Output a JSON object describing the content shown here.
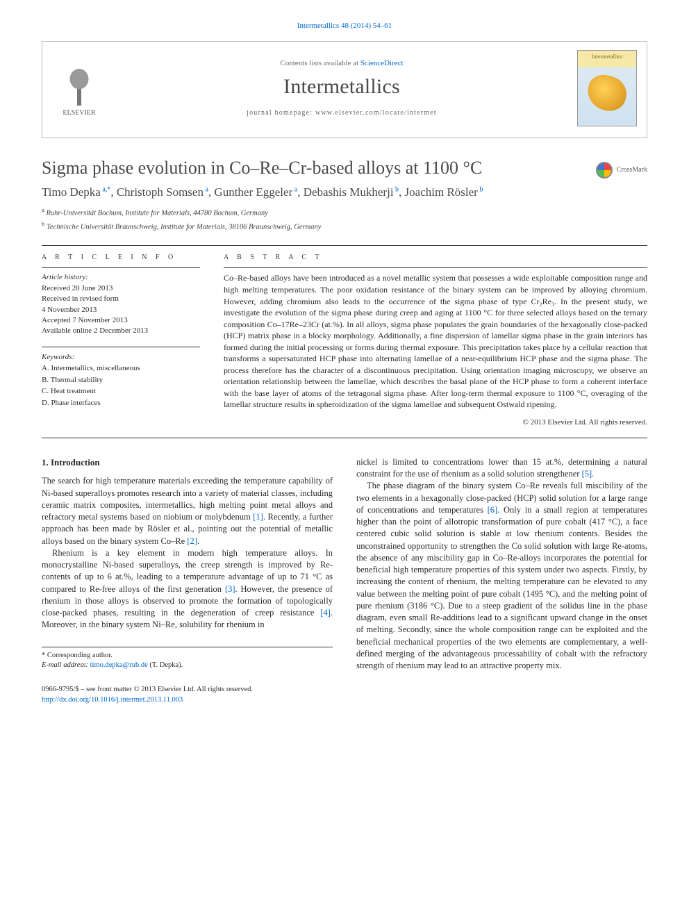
{
  "citation": {
    "text": "Intermetallics 48 (2014) 54–61"
  },
  "masthead": {
    "publisher": "ELSEVIER",
    "contents_prefix": "Contents lists available at ",
    "contents_link": "ScienceDirect",
    "journal": "Intermetallics",
    "homepage_prefix": "journal homepage: ",
    "homepage_url": "www.elsevier.com/locate/intermet",
    "cover_label": "Intermetallics"
  },
  "title": "Sigma phase evolution in Co–Re–Cr-based alloys at 1100 °C",
  "crossmark": "CrossMark",
  "authors_html": "Timo Depka",
  "authors": [
    {
      "name": "Timo Depka",
      "marks": "a,*"
    },
    {
      "name": "Christoph Somsen",
      "marks": "a"
    },
    {
      "name": "Gunther Eggeler",
      "marks": "a"
    },
    {
      "name": "Debashis Mukherji",
      "marks": "b"
    },
    {
      "name": "Joachim Rösler",
      "marks": "b"
    }
  ],
  "affiliations": [
    {
      "mark": "a",
      "text": "Ruhr-Universität Bochum, Institute for Materials, 44780 Bochum, Germany"
    },
    {
      "mark": "b",
      "text": "Technische Universität Braunschweig, Institute for Materials, 38106 Braunschweig, Germany"
    }
  ],
  "info": {
    "heading": "A R T I C L E   I N F O",
    "history_label": "Article history:",
    "history": [
      "Received 20 June 2013",
      "Received in revised form",
      "4 November 2013",
      "Accepted 7 November 2013",
      "Available online 2 December 2013"
    ],
    "keywords_label": "Keywords:",
    "keywords": [
      "A. Intermetallics, miscellaneous",
      "B. Thermal stability",
      "C. Heat treatment",
      "D. Phase interfaces"
    ]
  },
  "abstract": {
    "heading": "A B S T R A C T",
    "text": "Co–Re-based alloys have been introduced as a novel metallic system that possesses a wide exploitable composition range and high melting temperatures. The poor oxidation resistance of the binary system can be improved by alloying chromium. However, adding chromium also leads to the occurrence of the sigma phase of type Cr₂Re₃. In the present study, we investigate the evolution of the sigma phase during creep and aging at 1100 °C for three selected alloys based on the ternary composition Co–17Re–23Cr (at.%). In all alloys, sigma phase populates the grain boundaries of the hexagonally close-packed (HCP) matrix phase in a blocky morphology. Additionally, a fine dispersion of lamellar sigma phase in the grain interiors has formed during the initial processing or forms during thermal exposure. This precipitation takes place by a cellular reaction that transforms a supersaturated HCP phase into alternating lamellae of a near-equilibrium HCP phase and the sigma phase. The process therefore has the character of a discontinuous precipitation. Using orientation imaging microscopy, we observe an orientation relationship between the lamellae, which describes the basal plane of the HCP phase to form a coherent interface with the base layer of atoms of the tetragonal sigma phase. After long-term thermal exposure to 1100 °C, overaging of the lamellar structure results in spheroidization of the sigma lamellae and subsequent Ostwald ripening.",
    "copyright": "© 2013 Elsevier Ltd. All rights reserved."
  },
  "body": {
    "section_number": "1.",
    "section_title": "Introduction",
    "left": [
      "The search for high temperature materials exceeding the temperature capability of Ni-based superalloys promotes research into a variety of material classes, including ceramic matrix composites, intermetallics, high melting point metal alloys and refractory metal systems based on niobium or molybdenum [1]. Recently, a further approach has been made by Rösler et al., pointing out the potential of metallic alloys based on the binary system Co–Re [2].",
      "Rhenium is a key element in modern high temperature alloys. In monocrystalline Ni-based superalloys, the creep strength is improved by Re-contents of up to 6 at.%, leading to a temperature advantage of up to 71 °C as compared to Re-free alloys of the first generation [3]. However, the presence of rhenium in those alloys is observed to promote the formation of topologically close-packed phases, resulting in the degeneration of creep resistance [4]. Moreover, in the binary system Ni–Re, solubility for rhenium in"
    ],
    "right": [
      "nickel is limited to concentrations lower than 15 at.%, determining a natural constraint for the use of rhenium as a solid solution strengthener [5].",
      "The phase diagram of the binary system Co–Re reveals full miscibility of the two elements in a hexagonally close-packed (HCP) solid solution for a large range of concentrations and temperatures [6]. Only in a small region at temperatures higher than the point of allotropic transformation of pure cobalt (417 °C), a face centered cubic solid solution is stable at low rhenium contents. Besides the unconstrained opportunity to strengthen the Co solid solution with large Re-atoms, the absence of any miscibility gap in Co–Re-alloys incorporates the potential for beneficial high temperature properties of this system under two aspects. Firstly, by increasing the content of rhenium, the melting temperature can be elevated to any value between the melting point of pure cobalt (1495 °C), and the melting point of pure rhenium (3186 °C). Due to a steep gradient of the solidus line in the phase diagram, even small Re-additions lead to a significant upward change in the onset of melting. Secondly, since the whole composition range can be exploited and the beneficial mechanical properties of the two elements are complementary, a well-defined merging of the advantageous processability of cobalt with the refractory strength of rhenium may lead to an attractive property mix."
    ]
  },
  "footnotes": {
    "corr_label": "* Corresponding author.",
    "email_label": "E-mail address:",
    "email": "timo.depka@rub.de",
    "email_attr": " (T. Depka)."
  },
  "footer": {
    "line1": "0966-9795/$ – see front matter © 2013 Elsevier Ltd. All rights reserved.",
    "doi": "http://dx.doi.org/10.1016/j.intermet.2013.11.003"
  },
  "colors": {
    "link": "#0066cc",
    "text": "#2a2a2a",
    "heading": "#4a4a4a",
    "rule": "#333333"
  }
}
